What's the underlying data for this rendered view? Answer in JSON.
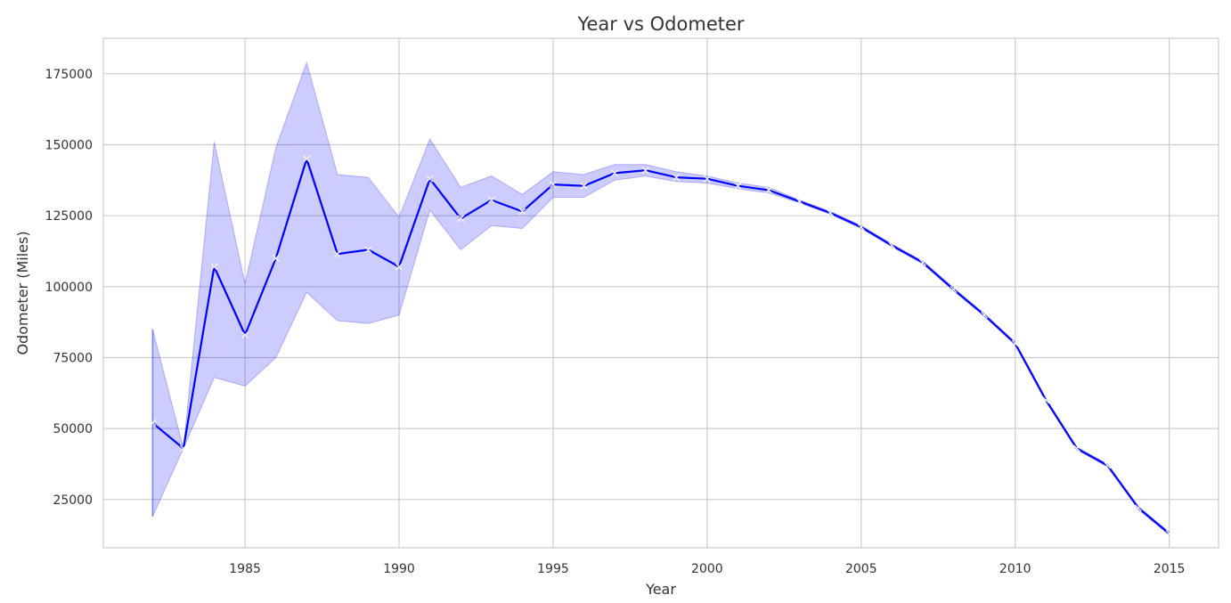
{
  "chart_data": {
    "type": "line",
    "title": "Year vs Odometer",
    "xlabel": "Year",
    "ylabel": "Odometer (Miles)",
    "xlim": [
      1980.4,
      2016.6
    ],
    "ylim": [
      8000,
      187500
    ],
    "x_ticks": [
      1985,
      1990,
      1995,
      2000,
      2005,
      2010,
      2015
    ],
    "y_ticks": [
      25000,
      50000,
      75000,
      100000,
      125000,
      150000,
      175000
    ],
    "grid": true,
    "colors": {
      "line": "#0000ff",
      "band": "#0000ff",
      "marker": "#ffffff"
    },
    "marker": "x",
    "series": [
      {
        "x": [
          1982,
          1983,
          1984,
          1985,
          1986,
          1987,
          1988,
          1989,
          1990,
          1991,
          1992,
          1993,
          1994,
          1995,
          1996,
          1997,
          1998,
          1999,
          2000,
          2001,
          2002,
          2003,
          2004,
          2005,
          2006,
          2007,
          2008,
          2009,
          2010,
          2011,
          2012,
          2013,
          2014,
          2015
        ],
        "y": [
          52000,
          43000,
          107000,
          83000,
          110000,
          145000,
          111500,
          113000,
          107000,
          138000,
          124000,
          130500,
          126500,
          136000,
          135500,
          140000,
          141000,
          138500,
          138000,
          135500,
          134000,
          130000,
          126000,
          121000,
          114500,
          108500,
          99000,
          90000,
          80000,
          60000,
          43000,
          37000,
          22000,
          13000
        ],
        "ci_low": [
          19000,
          43000,
          68000,
          65000,
          75000,
          98000,
          88000,
          87000,
          90000,
          127000,
          113000,
          121500,
          120500,
          131500,
          131500,
          137500,
          139000,
          137000,
          136500,
          134500,
          133000,
          129500,
          125500,
          120500,
          114000,
          108000,
          98500,
          89500,
          79500,
          59500,
          42500,
          36500,
          21500,
          12500
        ],
        "ci_high": [
          85000,
          43000,
          151000,
          101000,
          149000,
          179000,
          139500,
          138500,
          124500,
          152000,
          135000,
          139000,
          132500,
          140500,
          139500,
          143000,
          143000,
          140500,
          139000,
          136500,
          135000,
          130500,
          126500,
          121500,
          115000,
          109000,
          99500,
          90500,
          80500,
          60500,
          43500,
          37500,
          22500,
          13500
        ]
      }
    ]
  }
}
